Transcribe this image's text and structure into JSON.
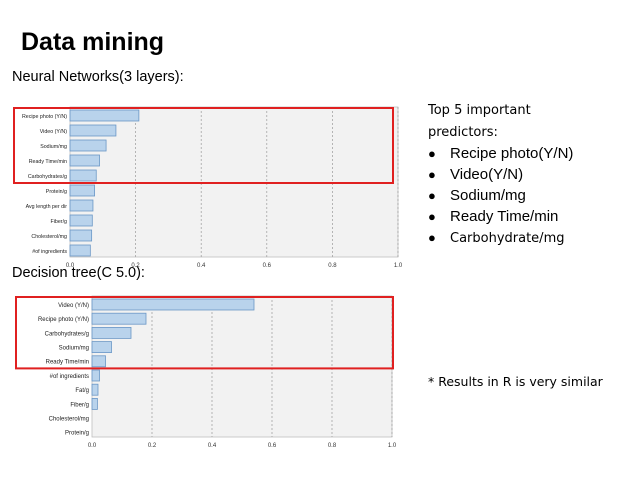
{
  "title": "Data mining",
  "section1_label": "Neural Networks(3 layers):",
  "section2_label": "Decision tree(C 5.0):",
  "side_heading": "Top 5 important predictors:",
  "top_predictors": [
    "Recipe photo(Y/N)",
    "Video(Y/N)",
    "Sodium/mg",
    "Ready Time/min",
    "Carbohydrate/mg"
  ],
  "note": "* Results in R is very similar",
  "colors": {
    "bar_fill": "#b9d3ec",
    "bar_stroke": "#6a97c6",
    "highlight": "#e02020",
    "plot_bg": "#f2f2f2"
  },
  "chart_data": [
    {
      "type": "bar",
      "orientation": "horizontal",
      "title": "",
      "categories": [
        "Recipe photo (Y/N)",
        "Video (Y/N)",
        "Sodium/mg",
        "Ready Time/min",
        "Carbohydrates/g",
        "Protein/g",
        "Avg length per dir",
        "Fiber/g",
        "Cholesterol/mg",
        "#of ingredients"
      ],
      "values": [
        0.21,
        0.14,
        0.11,
        0.09,
        0.08,
        0.075,
        0.07,
        0.068,
        0.066,
        0.062
      ],
      "xticks": [
        "0.0",
        "0.2",
        "0.4",
        "0.6",
        "0.8",
        "1.0"
      ],
      "xlim": [
        0,
        1
      ],
      "grid": true,
      "highlight_top": 5
    },
    {
      "type": "bar",
      "orientation": "horizontal",
      "title": "",
      "categories": [
        "Video (Y/N)",
        "Recipe photo (Y/N)",
        "Carbohydrates/g",
        "Sodium/mg",
        "Ready Time/min",
        "#of ingredients",
        "Fat/g",
        "Fiber/g",
        "Cholesterol/mg",
        "Protein/g"
      ],
      "values": [
        0.54,
        0.18,
        0.13,
        0.065,
        0.045,
        0.025,
        0.02,
        0.018,
        0.0,
        0.0
      ],
      "xticks": [
        "0.0",
        "0.2",
        "0.4",
        "0.6",
        "0.8",
        "1.0"
      ],
      "xlim": [
        0,
        1
      ],
      "grid": true,
      "highlight_top": 5
    }
  ]
}
